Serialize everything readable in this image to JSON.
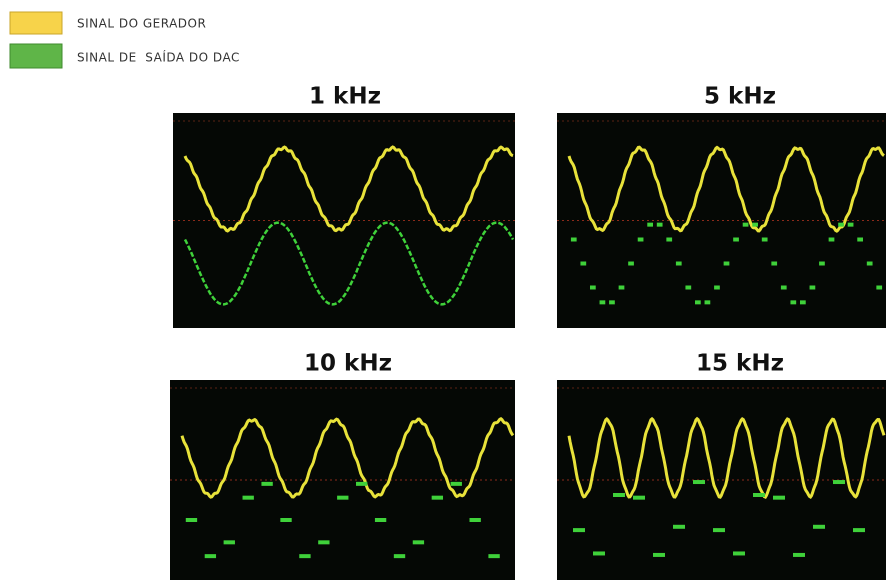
{
  "legend": [
    "SINAL DO GERADOR",
    "SINAL DE  SAÍDA DO DAC"
  ],
  "panels": [
    {
      "title": "1 kHz"
    },
    {
      "title": "5 kHz"
    },
    {
      "title": "10 kHz"
    },
    {
      "title": "15 kHz"
    }
  ]
}
